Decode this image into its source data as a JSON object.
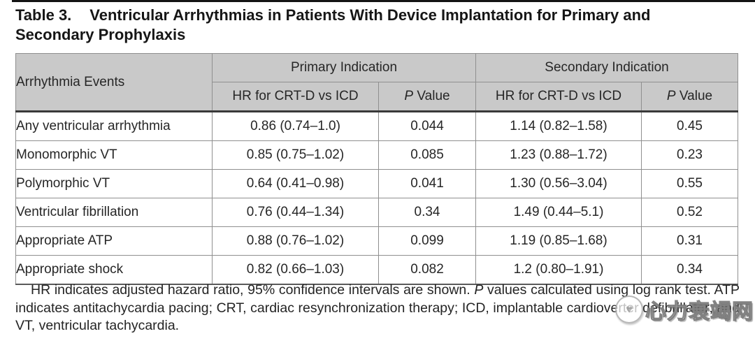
{
  "caption": {
    "number": "Table 3.",
    "text": "Ventricular Arrhythmias in Patients With Device Implantation for Primary and Secondary Prophylaxis"
  },
  "table": {
    "row_header": "Arrhythmia Events",
    "group_primary": "Primary Indication",
    "group_secondary": "Secondary Indication",
    "hr_header": "HR for CRT-D vs ICD",
    "p_italic": "P",
    "p_value_rest": " Value",
    "header_bg": "#c9c9c9",
    "rows": [
      {
        "event": "Any ventricular arrhythmia",
        "primary_hr": "0.86 (0.74–1.0)",
        "primary_p": "0.044",
        "secondary_hr": "1.14 (0.82–1.58)",
        "secondary_p": "0.45"
      },
      {
        "event": "Monomorphic VT",
        "primary_hr": "0.85 (0.75–1.02)",
        "primary_p": "0.085",
        "secondary_hr": "1.23 (0.88–1.72)",
        "secondary_p": "0.23"
      },
      {
        "event": "Polymorphic VT",
        "primary_hr": "0.64 (0.41–0.98)",
        "primary_p": "0.041",
        "secondary_hr": "1.30 (0.56–3.04)",
        "secondary_p": "0.55"
      },
      {
        "event": "Ventricular fibrillation",
        "primary_hr": "0.76 (0.44–1.34)",
        "primary_p": "0.34",
        "secondary_hr": "1.49 (0.44–5.1)",
        "secondary_p": "0.52"
      },
      {
        "event": "Appropriate ATP",
        "primary_hr": "0.88 (0.76–1.02)",
        "primary_p": "0.099",
        "secondary_hr": "1.19 (0.85–1.68)",
        "secondary_p": "0.31"
      },
      {
        "event": "Appropriate shock",
        "primary_hr": "0.82 (0.66–1.03)",
        "primary_p": "0.082",
        "secondary_hr": "1.2 (0.80–1.91)",
        "secondary_p": "0.34"
      }
    ]
  },
  "footnote": {
    "part1": "HR indicates adjusted hazard ratio, 95% confidence intervals are shown. ",
    "p_italic": "P",
    "part2": " values calculated using log rank test. ATP indicates antitachycardia pacing; CRT, cardiac resynchronization therapy; ICD, implantable cardioverter defibrillator; and VT, ventricular tachycardia."
  },
  "watermark": {
    "logo_glyph": "♥",
    "text": "心力衰竭网"
  }
}
